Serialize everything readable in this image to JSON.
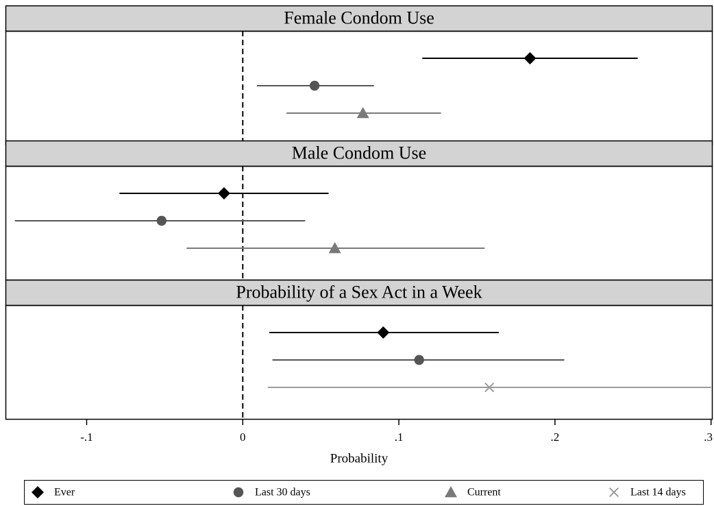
{
  "chart_data": {
    "type": "coefplot",
    "xlabel": "Probability",
    "xlim": [
      -0.152,
      0.301
    ],
    "xticks": [
      {
        "value": -0.1,
        "label": "-.1"
      },
      0,
      {
        "value": 0.1,
        "label": ".1"
      },
      {
        "value": 0.2,
        "label": ".2"
      },
      {
        "value": 0.3,
        "label": ".3"
      }
    ],
    "reference_line": 0,
    "categories": [
      "Female Condom Use",
      "Male Condom Use",
      "Probability of a Sex Act in a Week"
    ],
    "series": [
      {
        "name": "Ever",
        "color": "#000000",
        "marker": "diamond",
        "values": [
          0.184,
          -0.012,
          0.09
        ],
        "low": [
          0.115,
          -0.079,
          0.017
        ],
        "high": [
          0.253,
          0.055,
          0.164
        ]
      },
      {
        "name": "Last 30 days",
        "color": "#555555",
        "marker": "circle",
        "values": [
          0.046,
          -0.052,
          0.113
        ],
        "low": [
          0.009,
          -0.146,
          0.019
        ],
        "high": [
          0.084,
          0.04,
          0.206
        ]
      },
      {
        "name": "Current",
        "color": "#7a7a7a",
        "marker": "triangle",
        "values": [
          0.077,
          0.059,
          null
        ],
        "low": [
          0.028,
          -0.036,
          null
        ],
        "high": [
          0.127,
          0.155,
          null
        ]
      },
      {
        "name": "Last 14 days",
        "color": "#9a9a9a",
        "marker": "x",
        "values": [
          null,
          null,
          0.158
        ],
        "low": [
          null,
          null,
          0.016
        ],
        "high": [
          null,
          null,
          0.3
        ]
      }
    ]
  }
}
